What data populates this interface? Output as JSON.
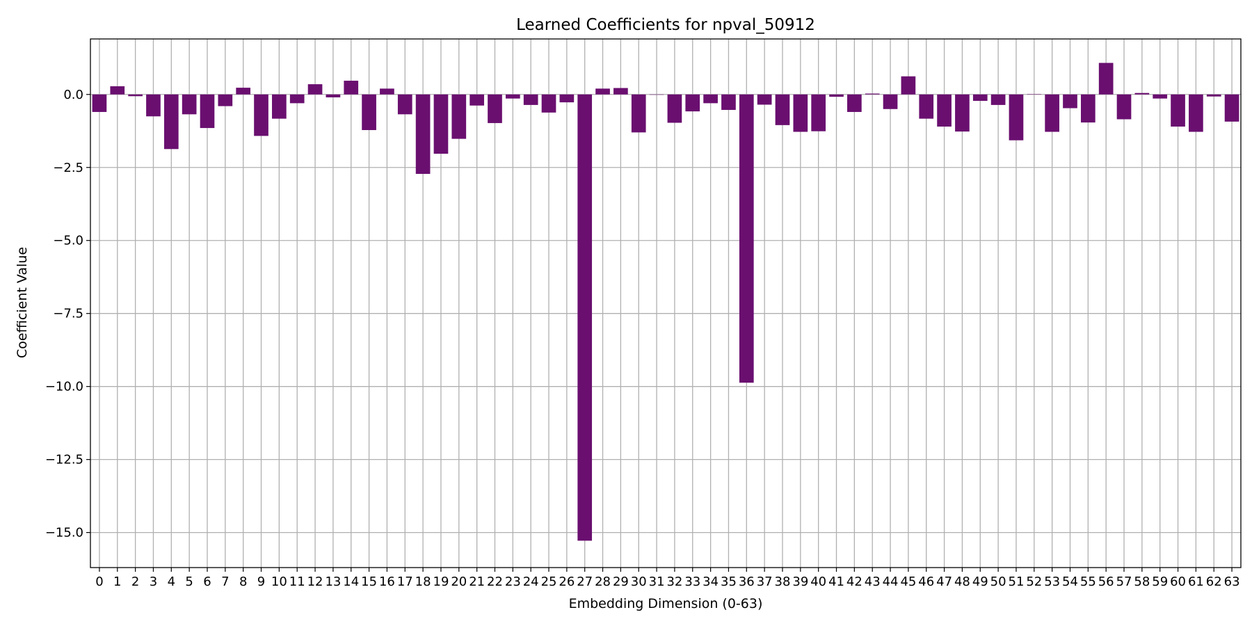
{
  "chart_data": {
    "type": "bar",
    "title": "Learned Coefficients for npval_50912",
    "xlabel": "Embedding Dimension (0-63)",
    "ylabel": "Coefficient Value",
    "categories": [
      "0",
      "1",
      "2",
      "3",
      "4",
      "5",
      "6",
      "7",
      "8",
      "9",
      "10",
      "11",
      "12",
      "13",
      "14",
      "15",
      "16",
      "17",
      "18",
      "19",
      "20",
      "21",
      "22",
      "23",
      "24",
      "25",
      "26",
      "27",
      "28",
      "29",
      "30",
      "31",
      "32",
      "33",
      "34",
      "35",
      "36",
      "37",
      "38",
      "39",
      "40",
      "41",
      "42",
      "43",
      "44",
      "45",
      "46",
      "47",
      "48",
      "49",
      "50",
      "51",
      "52",
      "53",
      "54",
      "55",
      "56",
      "57",
      "58",
      "59",
      "60",
      "61",
      "62",
      "63"
    ],
    "values": [
      -0.6,
      0.28,
      -0.06,
      -0.75,
      -1.87,
      -0.68,
      -1.15,
      -0.4,
      0.23,
      -1.42,
      -0.83,
      -0.3,
      0.35,
      -0.1,
      0.47,
      -1.22,
      0.2,
      -0.68,
      -2.72,
      -2.03,
      -1.52,
      -0.38,
      -0.98,
      -0.14,
      -0.36,
      -0.62,
      -0.27,
      -15.28,
      0.2,
      0.22,
      -1.3,
      0.0,
      -0.97,
      -0.58,
      -0.3,
      -0.53,
      -9.87,
      -0.35,
      -1.05,
      -1.28,
      -1.26,
      -0.08,
      -0.6,
      0.03,
      -0.5,
      0.62,
      -0.83,
      -1.1,
      -1.27,
      -0.22,
      -0.36,
      -1.57,
      0.01,
      -1.28,
      -0.47,
      -0.96,
      1.08,
      -0.85,
      0.05,
      -0.14,
      -1.1,
      -1.28,
      -0.07,
      -0.93
    ],
    "ylim": [
      -16.2,
      1.9
    ],
    "yticks": [
      0.0,
      -2.5,
      -5.0,
      -7.5,
      -10.0,
      -12.5,
      -15.0
    ],
    "ytick_labels": [
      "0.0",
      "−2.5",
      "−5.0",
      "−7.5",
      "−10.0",
      "−12.5",
      "−15.0"
    ],
    "bar_color": "#6a0f70",
    "grid": true,
    "grid_color": "#b0b0b0"
  }
}
